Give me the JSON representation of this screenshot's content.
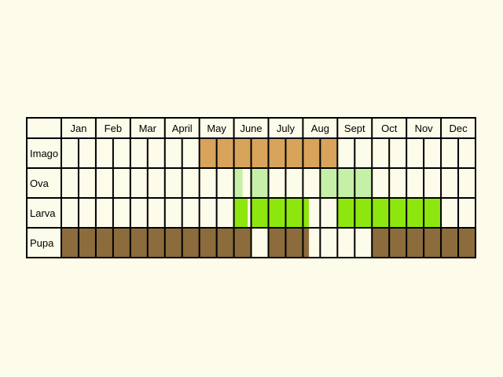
{
  "chart_data": {
    "type": "table",
    "title": "",
    "months": [
      "Jan",
      "Feb",
      "Mar",
      "April",
      "May",
      "June",
      "July",
      "Aug",
      "Sept",
      "Oct",
      "Nov",
      "Dec"
    ],
    "divisions_per_month": 2,
    "stages": [
      {
        "name": "Imago",
        "color": "#d8a35a",
        "cells": [
          0,
          0,
          0,
          0,
          0,
          0,
          0,
          0,
          1,
          1,
          1,
          1,
          1,
          1,
          1,
          1,
          0,
          0,
          0,
          0,
          0,
          0,
          0,
          0
        ]
      },
      {
        "name": "Ova",
        "color": "#c6efa8",
        "cells": [
          0,
          0,
          0,
          0,
          0,
          0,
          0,
          0,
          0,
          0,
          0.5,
          1,
          0,
          0,
          0,
          1,
          1,
          1,
          0,
          0,
          0,
          0,
          0,
          0
        ]
      },
      {
        "name": "Larva",
        "color": "#8ee60f",
        "cells": [
          0,
          0,
          0,
          0,
          0,
          0,
          0,
          0,
          0,
          0,
          0.8,
          1,
          1,
          1,
          0.35,
          0,
          1,
          1,
          1,
          1,
          1,
          1,
          0,
          0
        ]
      },
      {
        "name": "Pupa",
        "color": "#8c6c3c",
        "cells": [
          1,
          1,
          1,
          1,
          1,
          1,
          1,
          1,
          1,
          1,
          1,
          0,
          1,
          1,
          0.35,
          0,
          0,
          0,
          1,
          1,
          1,
          1,
          1,
          1
        ]
      }
    ]
  }
}
